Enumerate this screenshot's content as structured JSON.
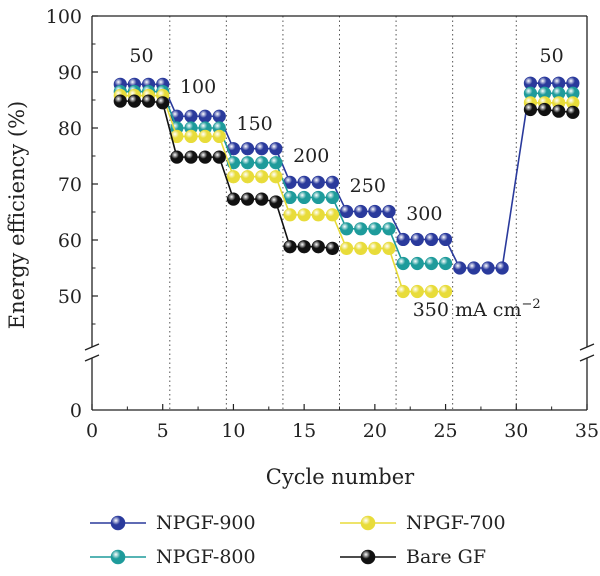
{
  "chart_data": {
    "type": "line",
    "xlabel": "Cycle number",
    "ylabel": "Energy efficiency (%)",
    "xlim": [
      0,
      35
    ],
    "x_ticks": [
      "0",
      "5",
      "10",
      "15",
      "20",
      "25",
      "30",
      "35"
    ],
    "y_ticks": [
      "0",
      "50",
      "60",
      "70",
      "80",
      "90",
      "100"
    ],
    "y_axis_break": [
      0,
      40
    ],
    "upper_ylim": [
      40,
      100
    ],
    "grid": "dotted vertical lines at rate changes",
    "rate_labels": [
      "50",
      "100",
      "150",
      "200",
      "250",
      "300",
      "350 mA cm",
      "50"
    ],
    "rate_label_superscript": "−2",
    "x": [
      2,
      3,
      4,
      5,
      6,
      7,
      8,
      9,
      10,
      11,
      12,
      13,
      14,
      15,
      16,
      17,
      18,
      19,
      20,
      21,
      22,
      23,
      24,
      25,
      26,
      27,
      28,
      29,
      31,
      32,
      33,
      34
    ],
    "series": [
      {
        "name": "NPGF-900",
        "color": "#2a3a9c",
        "values": [
          87.8,
          87.8,
          87.8,
          87.8,
          82.1,
          82.1,
          82.1,
          82.1,
          76.3,
          76.3,
          76.3,
          76.3,
          70.3,
          70.3,
          70.3,
          70.3,
          65.1,
          65.1,
          65.1,
          65.1,
          60.1,
          60.1,
          60.1,
          60.1,
          55.0,
          55.0,
          55.0,
          55.0,
          88.0,
          88.0,
          88.0,
          88.0
        ]
      },
      {
        "name": "NPGF-800",
        "color": "#1e9b9b",
        "values": [
          86.5,
          86.5,
          86.5,
          86.5,
          80.0,
          80.0,
          80.0,
          80.0,
          73.8,
          73.8,
          73.8,
          73.8,
          67.6,
          67.6,
          67.6,
          67.6,
          62.0,
          62.0,
          62.0,
          62.0,
          55.8,
          55.8,
          55.8,
          55.8,
          null,
          null,
          null,
          null,
          86.2,
          86.2,
          86.2,
          86.2
        ]
      },
      {
        "name": "NPGF-700",
        "color": "#e8dc3a",
        "values": [
          85.8,
          85.8,
          85.8,
          85.8,
          78.5,
          78.5,
          78.5,
          78.5,
          71.3,
          71.3,
          71.3,
          71.3,
          64.5,
          64.5,
          64.5,
          64.5,
          58.5,
          58.5,
          58.5,
          58.5,
          50.8,
          50.8,
          50.8,
          50.8,
          null,
          null,
          null,
          null,
          84.5,
          84.5,
          84.5,
          84.5
        ]
      },
      {
        "name": "Bare GF",
        "color": "#111111",
        "values": [
          84.8,
          84.8,
          84.8,
          84.5,
          74.8,
          74.8,
          74.8,
          74.8,
          67.3,
          67.3,
          67.3,
          66.8,
          58.8,
          58.8,
          58.8,
          58.5,
          null,
          null,
          null,
          null,
          null,
          null,
          null,
          null,
          null,
          null,
          null,
          null,
          83.3,
          83.3,
          83.0,
          82.8
        ]
      }
    ]
  }
}
